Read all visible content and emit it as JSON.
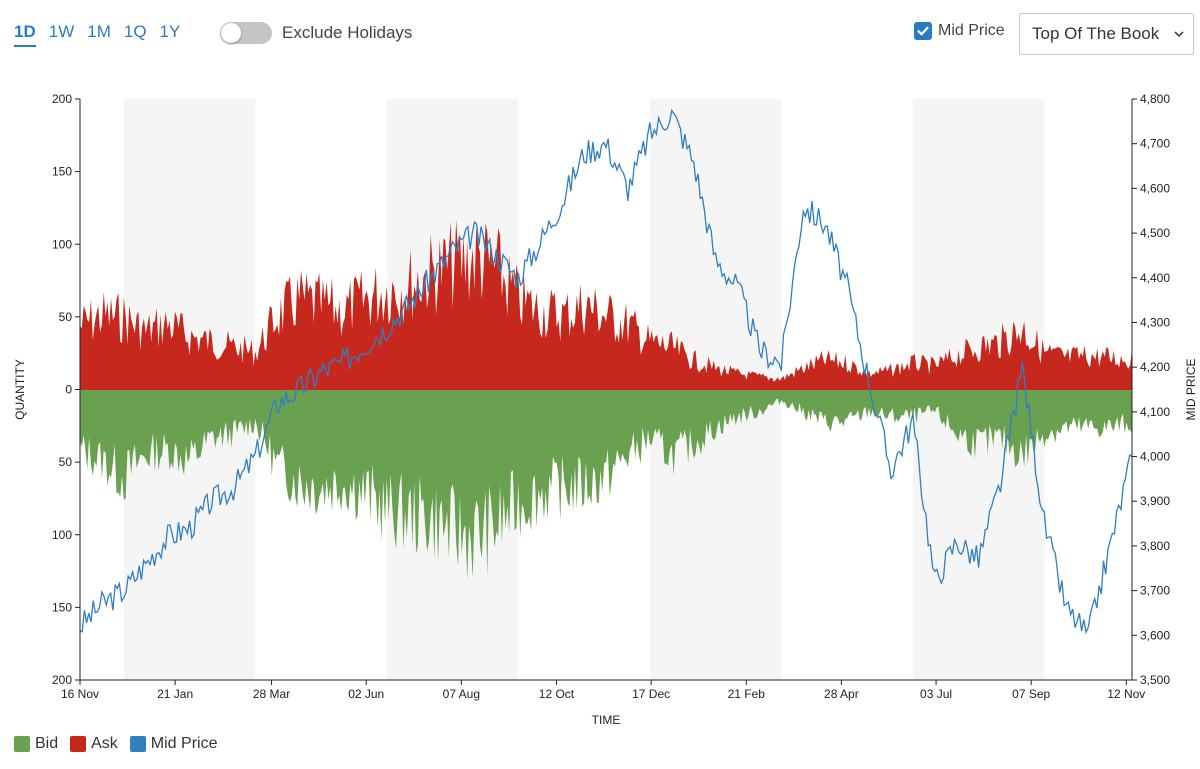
{
  "toolbar": {
    "range_tabs": [
      "1D",
      "1W",
      "1M",
      "1Q",
      "1Y"
    ],
    "active_range": "1D",
    "exclude_holidays_label": "Exclude Holidays",
    "exclude_holidays_on": false,
    "mid_price_label": "Mid Price",
    "mid_price_checked": true,
    "book_select_value": "Top Of The Book"
  },
  "chart_data": {
    "type": "area",
    "xlabel": "TIME",
    "ylabel_left": "QUANTITY",
    "ylabel_right": "MID PRICE",
    "x_ticks": [
      "16 Nov",
      "21 Jan",
      "28 Mar",
      "02 Jun",
      "07 Aug",
      "12 Oct",
      "17 Dec",
      "21 Feb",
      "28 Apr",
      "03 Jul",
      "07 Sep",
      "12 Nov"
    ],
    "y_left_ticks": [
      "200",
      "150",
      "100",
      "50",
      "0",
      "50",
      "100",
      "150",
      "200"
    ],
    "y_left_lim": [
      -200,
      200
    ],
    "y_right_ticks": [
      "4,800",
      "4,700",
      "4,600",
      "4,500",
      "4,400",
      "4,300",
      "4,200",
      "4,100",
      "4,000",
      "3,900",
      "3,800",
      "3,700",
      "3,600",
      "3,500"
    ],
    "y_right_lim": [
      3500,
      4800
    ],
    "x_months": [
      0,
      2.17,
      4.37,
      6.53,
      8.7,
      10.87,
      13.03,
      15.2,
      17.37,
      19.53,
      21.7,
      23.87
    ],
    "shaded_bands": [
      [
        1,
        4
      ],
      [
        7,
        10
      ],
      [
        13,
        16
      ],
      [
        19,
        22
      ]
    ],
    "colors": {
      "bid": "#6aa150",
      "ask": "#c6281e",
      "mid": "#2f7fc1",
      "band": "#f5f5f5"
    },
    "series": [
      {
        "name": "Ask",
        "x": [
          0,
          0.5,
          1,
          1.5,
          2,
          2.5,
          3,
          3.5,
          4,
          4.5,
          5,
          5.5,
          6,
          6.5,
          7,
          7.5,
          8,
          8.5,
          9,
          9.5,
          10,
          10.5,
          11,
          11.5,
          12,
          12.5,
          13,
          13.5,
          14,
          14.5,
          15,
          15.5,
          16,
          16.5,
          17,
          17.5,
          18,
          18.5,
          19,
          19.5,
          20,
          20.5,
          21,
          21.5,
          22,
          22.5,
          23,
          23.5,
          24
        ],
        "values": [
          60,
          70,
          68,
          55,
          62,
          50,
          45,
          40,
          35,
          70,
          85,
          80,
          75,
          85,
          95,
          100,
          110,
          118,
          125,
          115,
          85,
          75,
          70,
          80,
          70,
          62,
          45,
          40,
          28,
          20,
          15,
          12,
          10,
          20,
          28,
          25,
          15,
          18,
          25,
          22,
          32,
          40,
          45,
          58,
          35,
          30,
          32,
          30,
          28
        ]
      },
      {
        "name": "Bid",
        "x": [
          0,
          0.5,
          1,
          1.5,
          2,
          2.5,
          3,
          3.5,
          4,
          4.5,
          5,
          5.5,
          6,
          6.5,
          7,
          7.5,
          8,
          8.5,
          9,
          9.5,
          10,
          10.5,
          11,
          11.5,
          12,
          12.5,
          13,
          13.5,
          14,
          14.5,
          15,
          15.5,
          16,
          16.5,
          17,
          17.5,
          18,
          18.5,
          19,
          19.5,
          20,
          20.5,
          21,
          21.5,
          22,
          22.5,
          23,
          23.5,
          24
        ],
        "values": [
          -55,
          -65,
          -80,
          -60,
          -55,
          -65,
          -45,
          -40,
          -30,
          -70,
          -85,
          -90,
          -85,
          -95,
          -110,
          -115,
          -118,
          -130,
          -135,
          -125,
          -105,
          -95,
          -90,
          -88,
          -80,
          -60,
          -45,
          -60,
          -50,
          -35,
          -25,
          -20,
          -10,
          -20,
          -30,
          -30,
          -20,
          -25,
          -25,
          -20,
          -40,
          -50,
          -45,
          -60,
          -40,
          -35,
          -35,
          -35,
          -30
        ]
      },
      {
        "name": "Mid Price",
        "axis": "right",
        "x": [
          0,
          0.5,
          1,
          1.5,
          2,
          2.5,
          3,
          3.5,
          4,
          4.5,
          5,
          5.5,
          6,
          6.5,
          7,
          7.5,
          8,
          8.5,
          9,
          9.5,
          10,
          10.5,
          11,
          11.5,
          12,
          12.5,
          13,
          13.5,
          14,
          14.5,
          15,
          15.5,
          16,
          16.5,
          17,
          17.5,
          18,
          18.5,
          19,
          19.5,
          20,
          20.5,
          21,
          21.5,
          22,
          22.5,
          23,
          23.5,
          24
        ],
        "values": [
          3620,
          3670,
          3700,
          3760,
          3820,
          3840,
          3900,
          3930,
          4000,
          4120,
          4150,
          4190,
          4210,
          4250,
          4290,
          4340,
          4400,
          4460,
          4500,
          4450,
          4400,
          4480,
          4570,
          4680,
          4700,
          4600,
          4720,
          4770,
          4660,
          4440,
          4380,
          4240,
          4210,
          4560,
          4520,
          4380,
          4170,
          3970,
          4080,
          3720,
          3810,
          3770,
          3940,
          4200,
          3850,
          3660,
          3600,
          3800,
          4000
        ]
      }
    ]
  },
  "legend": [
    {
      "label": "Bid",
      "color": "#6aa150"
    },
    {
      "label": "Ask",
      "color": "#c6281e"
    },
    {
      "label": "Mid Price",
      "color": "#2f7fc1"
    }
  ]
}
